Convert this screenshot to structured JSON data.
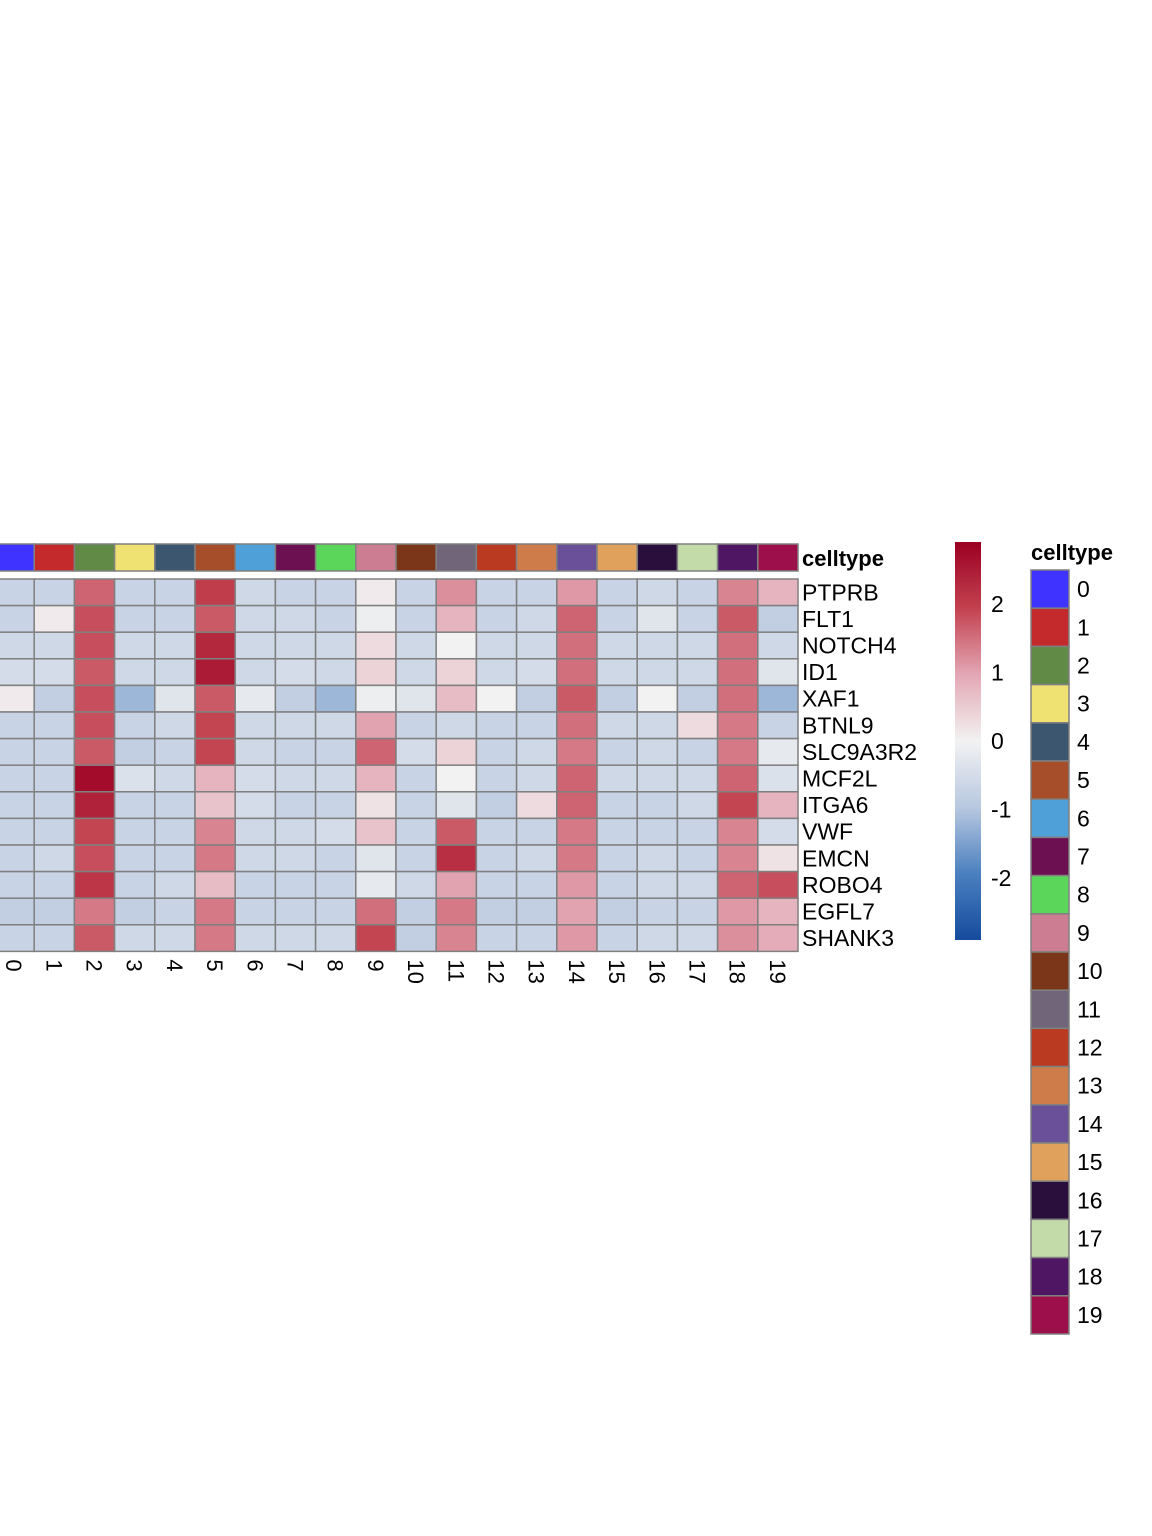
{
  "chart_data": {
    "type": "heatmap",
    "title": "",
    "annotation_title": "celltype",
    "legend_title": "celltype",
    "columns": [
      "0",
      "1",
      "2",
      "3",
      "4",
      "5",
      "6",
      "7",
      "8",
      "9",
      "10",
      "11",
      "12",
      "13",
      "14",
      "15",
      "16",
      "17",
      "18",
      "19"
    ],
    "rows": [
      "PTPRB",
      "FLT1",
      "NOTCH4",
      "ID1",
      "XAF1",
      "BTNL9",
      "SLC9A3R2",
      "MCF2L",
      "ITGA6",
      "VWF",
      "EMCN",
      "ROBO4",
      "EGFL7",
      "SHANK3"
    ],
    "values": [
      [
        -0.7,
        -0.7,
        1.6,
        -0.7,
        -0.7,
        2.0,
        -0.6,
        -0.7,
        -0.7,
        0.1,
        -0.7,
        1.2,
        -0.7,
        -0.7,
        1.1,
        -0.7,
        -0.6,
        -0.7,
        1.3,
        0.8
      ],
      [
        -0.7,
        0.1,
        1.8,
        -0.7,
        -0.7,
        1.7,
        -0.6,
        -0.6,
        -0.7,
        -0.1,
        -0.7,
        0.8,
        -0.7,
        -0.6,
        1.6,
        -0.7,
        -0.3,
        -0.7,
        1.7,
        -0.8
      ],
      [
        -0.6,
        -0.6,
        1.8,
        -0.6,
        -0.6,
        2.3,
        -0.6,
        -0.6,
        -0.6,
        0.3,
        -0.6,
        0.0,
        -0.6,
        -0.6,
        1.5,
        -0.6,
        -0.6,
        -0.6,
        1.5,
        -0.6
      ],
      [
        -0.5,
        -0.5,
        1.7,
        -0.6,
        -0.6,
        2.5,
        -0.6,
        -0.5,
        -0.6,
        0.4,
        -0.6,
        0.4,
        -0.6,
        -0.5,
        1.5,
        -0.6,
        -0.6,
        -0.6,
        1.5,
        -0.3
      ],
      [
        0.1,
        -0.8,
        1.8,
        -1.2,
        -0.3,
        1.7,
        -0.2,
        -0.8,
        -1.2,
        -0.1,
        -0.3,
        0.7,
        0.0,
        -0.8,
        1.7,
        -0.8,
        0.0,
        -0.8,
        1.5,
        -1.2
      ],
      [
        -0.7,
        -0.7,
        1.8,
        -0.7,
        -0.6,
        1.9,
        -0.6,
        -0.6,
        -0.6,
        1.0,
        -0.7,
        -0.6,
        -0.7,
        -0.7,
        1.5,
        -0.6,
        -0.6,
        0.3,
        1.4,
        -0.7
      ],
      [
        -0.7,
        -0.7,
        1.7,
        -0.8,
        -0.7,
        1.9,
        -0.6,
        -0.7,
        -0.7,
        1.6,
        -0.5,
        0.4,
        -0.7,
        -0.6,
        1.4,
        -0.7,
        -0.6,
        -0.7,
        1.4,
        -0.2
      ],
      [
        -0.7,
        -0.7,
        2.7,
        -0.4,
        -0.6,
        0.8,
        -0.5,
        -0.6,
        -0.6,
        0.8,
        -0.7,
        0.0,
        -0.7,
        -0.6,
        1.6,
        -0.6,
        -0.6,
        -0.6,
        1.6,
        -0.4
      ],
      [
        -0.7,
        -0.7,
        2.4,
        -0.7,
        -0.7,
        0.6,
        -0.5,
        -0.7,
        -0.7,
        0.2,
        -0.7,
        -0.3,
        -0.8,
        0.3,
        1.6,
        -0.7,
        -0.7,
        -0.6,
        1.9,
        0.8
      ],
      [
        -0.7,
        -0.7,
        1.9,
        -0.7,
        -0.7,
        1.3,
        -0.6,
        -0.6,
        -0.5,
        0.6,
        -0.7,
        1.7,
        -0.7,
        -0.7,
        1.4,
        -0.7,
        -0.7,
        -0.7,
        1.3,
        -0.5
      ],
      [
        -0.7,
        -0.6,
        1.8,
        -0.7,
        -0.7,
        1.4,
        -0.6,
        -0.6,
        -0.7,
        -0.3,
        -0.7,
        2.2,
        -0.7,
        -0.6,
        1.4,
        -0.7,
        -0.6,
        -0.7,
        1.3,
        0.2
      ],
      [
        -0.7,
        -0.7,
        2.1,
        -0.7,
        -0.6,
        0.7,
        -0.7,
        -0.7,
        -0.7,
        -0.2,
        -0.6,
        1.0,
        -0.7,
        -0.7,
        1.1,
        -0.7,
        -0.6,
        -0.6,
        1.6,
        1.8
      ],
      [
        -0.8,
        -0.8,
        1.4,
        -0.8,
        -0.7,
        1.4,
        -0.7,
        -0.7,
        -0.7,
        1.5,
        -0.8,
        1.4,
        -0.8,
        -0.8,
        1.0,
        -0.8,
        -0.7,
        -0.7,
        1.1,
        0.8
      ],
      [
        -0.7,
        -0.7,
        1.7,
        -0.6,
        -0.6,
        1.4,
        -0.6,
        -0.6,
        -0.6,
        1.9,
        -0.8,
        1.3,
        -0.7,
        -0.7,
        1.1,
        -0.7,
        -0.6,
        -0.6,
        1.2,
        0.9
      ]
    ],
    "celltype_colors": [
      "#3f34ff",
      "#c4292c",
      "#608a46",
      "#efe273",
      "#3b566e",
      "#a64d2a",
      "#4f9fd8",
      "#6c1052",
      "#5bd55a",
      "#cd7d91",
      "#7b3619",
      "#716679",
      "#b93a21",
      "#cd7c4a",
      "#6a5098",
      "#e0a15d",
      "#2a0f3c",
      "#c2dba8",
      "#4f1664",
      "#9c0f4b"
    ],
    "color_scale": {
      "range": [
        -2.9,
        2.9
      ],
      "ticks": [
        "2",
        "1",
        "0",
        "-1",
        "-2"
      ],
      "tick_values": [
        2,
        1,
        0,
        -1,
        -2
      ],
      "colors": [
        "#154b9d",
        "#4a80bf",
        "#b8c8e0",
        "#f2f2f2",
        "#e3a7b4",
        "#c3414f",
        "#9b0022"
      ]
    }
  }
}
